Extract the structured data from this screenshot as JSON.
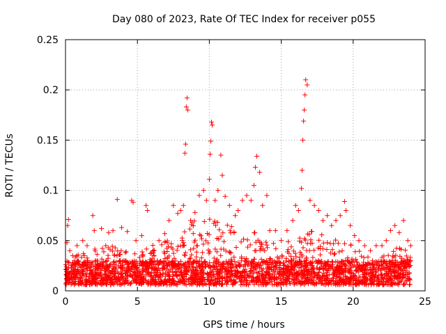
{
  "colors": {
    "series": "#ff0000",
    "axis": "#000000",
    "grid": "#a0a0a0",
    "background": "#ffffff"
  },
  "chart_data": {
    "type": "scatter",
    "title": "Day 080 of 2023, Rate Of TEC Index for receiver p055",
    "xlabel": "GPS time / hours",
    "ylabel": "ROTI / TECUs",
    "xlim": [
      0,
      25
    ],
    "ylim": [
      0,
      0.25
    ],
    "x_ticks": [
      "0",
      "5",
      "10",
      "15",
      "20",
      "25"
    ],
    "y_ticks": [
      "0",
      "0.05",
      "0.1",
      "0.15",
      "0.2",
      "0.25"
    ],
    "grid": true,
    "marker": "plus",
    "series": [
      {
        "points": [
          [
            0.1,
            0.048
          ],
          [
            0.15,
            0.065
          ],
          [
            0.2,
            0.071
          ],
          [
            0.3,
            0.04
          ],
          [
            0.5,
            0.035
          ],
          [
            0.8,
            0.045
          ],
          [
            1.2,
            0.05
          ],
          [
            1.5,
            0.045
          ],
          [
            1.9,
            0.075
          ],
          [
            2.0,
            0.06
          ],
          [
            2.5,
            0.062
          ],
          [
            2.8,
            0.045
          ],
          [
            3.0,
            0.058
          ],
          [
            3.3,
            0.06
          ],
          [
            3.6,
            0.091
          ],
          [
            3.9,
            0.063
          ],
          [
            4.3,
            0.059
          ],
          [
            4.6,
            0.09
          ],
          [
            4.7,
            0.088
          ],
          [
            4.9,
            0.05
          ],
          [
            5.3,
            0.055
          ],
          [
            5.6,
            0.085
          ],
          [
            5.7,
            0.08
          ],
          [
            6.1,
            0.04
          ],
          [
            6.5,
            0.05
          ],
          [
            6.9,
            0.057
          ],
          [
            7.2,
            0.07
          ],
          [
            7.5,
            0.085
          ],
          [
            7.8,
            0.077
          ],
          [
            8.0,
            0.08
          ],
          [
            8.2,
            0.085
          ],
          [
            8.3,
            0.137
          ],
          [
            8.35,
            0.146
          ],
          [
            8.4,
            0.183
          ],
          [
            8.45,
            0.192
          ],
          [
            8.5,
            0.18
          ],
          [
            8.7,
            0.07
          ],
          [
            9.0,
            0.078
          ],
          [
            9.3,
            0.095
          ],
          [
            9.6,
            0.1
          ],
          [
            9.8,
            0.09
          ],
          [
            10.0,
            0.111
          ],
          [
            10.05,
            0.136
          ],
          [
            10.1,
            0.149
          ],
          [
            10.15,
            0.168
          ],
          [
            10.2,
            0.165
          ],
          [
            10.4,
            0.09
          ],
          [
            10.6,
            0.1
          ],
          [
            10.8,
            0.135
          ],
          [
            10.9,
            0.115
          ],
          [
            11.1,
            0.094
          ],
          [
            11.4,
            0.085
          ],
          [
            11.8,
            0.075
          ],
          [
            12.0,
            0.08
          ],
          [
            12.3,
            0.09
          ],
          [
            12.6,
            0.095
          ],
          [
            12.9,
            0.09
          ],
          [
            13.1,
            0.105
          ],
          [
            13.2,
            0.123
          ],
          [
            13.3,
            0.134
          ],
          [
            13.5,
            0.118
          ],
          [
            13.7,
            0.085
          ],
          [
            14.0,
            0.095
          ],
          [
            14.2,
            0.06
          ],
          [
            14.6,
            0.06
          ],
          [
            15.0,
            0.05
          ],
          [
            15.4,
            0.06
          ],
          [
            15.8,
            0.07
          ],
          [
            16.0,
            0.085
          ],
          [
            16.2,
            0.08
          ],
          [
            16.4,
            0.102
          ],
          [
            16.45,
            0.12
          ],
          [
            16.5,
            0.15
          ],
          [
            16.55,
            0.169
          ],
          [
            16.6,
            0.18
          ],
          [
            16.65,
            0.195
          ],
          [
            16.7,
            0.21
          ],
          [
            16.8,
            0.205
          ],
          [
            17.0,
            0.09
          ],
          [
            17.3,
            0.085
          ],
          [
            17.6,
            0.08
          ],
          [
            17.9,
            0.07
          ],
          [
            18.2,
            0.075
          ],
          [
            18.5,
            0.065
          ],
          [
            18.8,
            0.07
          ],
          [
            19.1,
            0.075
          ],
          [
            19.4,
            0.089
          ],
          [
            19.5,
            0.08
          ],
          [
            19.8,
            0.065
          ],
          [
            20.1,
            0.055
          ],
          [
            20.4,
            0.05
          ],
          [
            20.8,
            0.045
          ],
          [
            21.2,
            0.04
          ],
          [
            21.6,
            0.045
          ],
          [
            22.0,
            0.045
          ],
          [
            22.3,
            0.05
          ],
          [
            22.6,
            0.06
          ],
          [
            22.9,
            0.065
          ],
          [
            23.2,
            0.058
          ],
          [
            23.5,
            0.07
          ],
          [
            23.8,
            0.05
          ],
          [
            24.0,
            0.045
          ]
        ]
      }
    ],
    "dense_band": {
      "x_range": [
        0,
        24
      ],
      "baseline_range": [
        0.006,
        0.03
      ],
      "envelope": [
        [
          0,
          0.035
        ],
        [
          1,
          0.038
        ],
        [
          2,
          0.042
        ],
        [
          3,
          0.045
        ],
        [
          4,
          0.045
        ],
        [
          5,
          0.04
        ],
        [
          6,
          0.045
        ],
        [
          7,
          0.05
        ],
        [
          8,
          0.06
        ],
        [
          9,
          0.07
        ],
        [
          10,
          0.075
        ],
        [
          11,
          0.07
        ],
        [
          12,
          0.065
        ],
        [
          13,
          0.06
        ],
        [
          14,
          0.05
        ],
        [
          15,
          0.045
        ],
        [
          16,
          0.055
        ],
        [
          17,
          0.06
        ],
        [
          18,
          0.055
        ],
        [
          19,
          0.05
        ],
        [
          20,
          0.045
        ],
        [
          21,
          0.035
        ],
        [
          22,
          0.035
        ],
        [
          23,
          0.045
        ],
        [
          24,
          0.04
        ]
      ]
    }
  }
}
